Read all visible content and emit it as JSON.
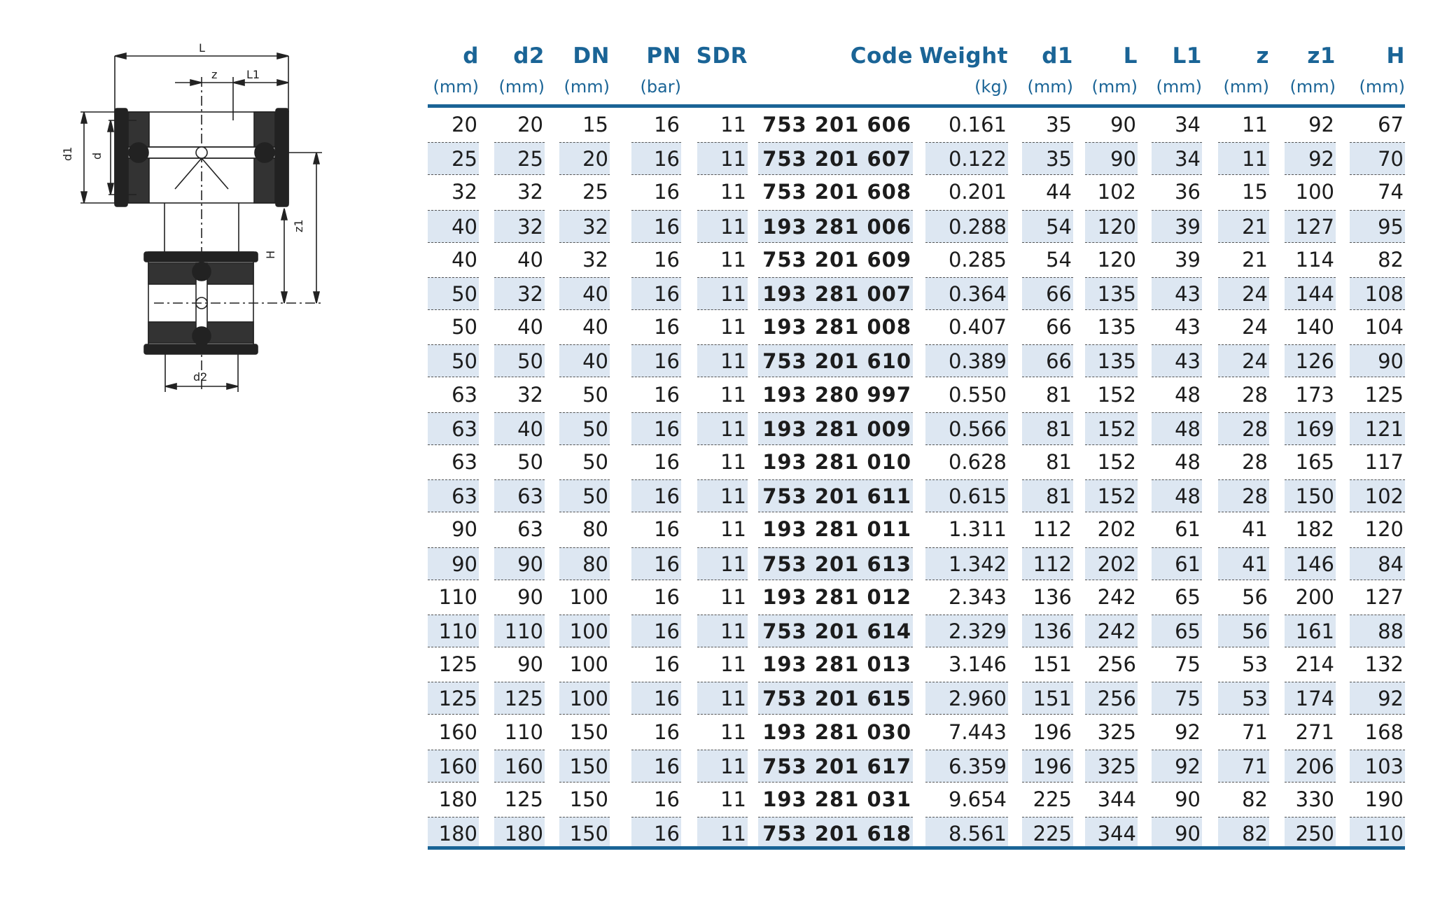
{
  "drawing": {
    "labels": {
      "L": "L",
      "z": "z",
      "L1": "L1",
      "d1": "d1",
      "d": "d",
      "z1": "z1",
      "H": "H",
      "d2": "d2"
    }
  },
  "table": {
    "columns": [
      {
        "key": "d",
        "label": "d",
        "unit": "(mm)"
      },
      {
        "key": "d2",
        "label": "d2",
        "unit": "(mm)"
      },
      {
        "key": "DN",
        "label": "DN",
        "unit": "(mm)"
      },
      {
        "key": "PN",
        "label": "PN",
        "unit": "(bar)"
      },
      {
        "key": "SDR",
        "label": "SDR",
        "unit": ""
      },
      {
        "key": "Code",
        "label": "Code",
        "unit": ""
      },
      {
        "key": "Weight",
        "label": "Weight",
        "unit": "(kg)"
      },
      {
        "key": "d1",
        "label": "d1",
        "unit": "(mm)"
      },
      {
        "key": "L",
        "label": "L",
        "unit": "(mm)"
      },
      {
        "key": "L1",
        "label": "L1",
        "unit": "(mm)"
      },
      {
        "key": "z",
        "label": "z",
        "unit": "(mm)"
      },
      {
        "key": "z1",
        "label": "z1",
        "unit": "(mm)"
      },
      {
        "key": "H",
        "label": "H",
        "unit": "(mm)"
      }
    ],
    "rows": [
      [
        "20",
        "20",
        "15",
        "16",
        "11",
        "753 201 606",
        "0.161",
        "35",
        "90",
        "34",
        "11",
        "92",
        "67"
      ],
      [
        "25",
        "25",
        "20",
        "16",
        "11",
        "753 201 607",
        "0.122",
        "35",
        "90",
        "34",
        "11",
        "92",
        "70"
      ],
      [
        "32",
        "32",
        "25",
        "16",
        "11",
        "753 201 608",
        "0.201",
        "44",
        "102",
        "36",
        "15",
        "100",
        "74"
      ],
      [
        "40",
        "32",
        "32",
        "16",
        "11",
        "193 281 006",
        "0.288",
        "54",
        "120",
        "39",
        "21",
        "127",
        "95"
      ],
      [
        "40",
        "40",
        "32",
        "16",
        "11",
        "753 201 609",
        "0.285",
        "54",
        "120",
        "39",
        "21",
        "114",
        "82"
      ],
      [
        "50",
        "32",
        "40",
        "16",
        "11",
        "193 281 007",
        "0.364",
        "66",
        "135",
        "43",
        "24",
        "144",
        "108"
      ],
      [
        "50",
        "40",
        "40",
        "16",
        "11",
        "193 281 008",
        "0.407",
        "66",
        "135",
        "43",
        "24",
        "140",
        "104"
      ],
      [
        "50",
        "50",
        "40",
        "16",
        "11",
        "753 201 610",
        "0.389",
        "66",
        "135",
        "43",
        "24",
        "126",
        "90"
      ],
      [
        "63",
        "32",
        "50",
        "16",
        "11",
        "193 280 997",
        "0.550",
        "81",
        "152",
        "48",
        "28",
        "173",
        "125"
      ],
      [
        "63",
        "40",
        "50",
        "16",
        "11",
        "193 281 009",
        "0.566",
        "81",
        "152",
        "48",
        "28",
        "169",
        "121"
      ],
      [
        "63",
        "50",
        "50",
        "16",
        "11",
        "193 281 010",
        "0.628",
        "81",
        "152",
        "48",
        "28",
        "165",
        "117"
      ],
      [
        "63",
        "63",
        "50",
        "16",
        "11",
        "753 201 611",
        "0.615",
        "81",
        "152",
        "48",
        "28",
        "150",
        "102"
      ],
      [
        "90",
        "63",
        "80",
        "16",
        "11",
        "193 281 011",
        "1.311",
        "112",
        "202",
        "61",
        "41",
        "182",
        "120"
      ],
      [
        "90",
        "90",
        "80",
        "16",
        "11",
        "753 201 613",
        "1.342",
        "112",
        "202",
        "61",
        "41",
        "146",
        "84"
      ],
      [
        "110",
        "90",
        "100",
        "16",
        "11",
        "193 281 012",
        "2.343",
        "136",
        "242",
        "65",
        "56",
        "200",
        "127"
      ],
      [
        "110",
        "110",
        "100",
        "16",
        "11",
        "753 201 614",
        "2.329",
        "136",
        "242",
        "65",
        "56",
        "161",
        "88"
      ],
      [
        "125",
        "90",
        "100",
        "16",
        "11",
        "193 281 013",
        "3.146",
        "151",
        "256",
        "75",
        "53",
        "214",
        "132"
      ],
      [
        "125",
        "125",
        "100",
        "16",
        "11",
        "753 201 615",
        "2.960",
        "151",
        "256",
        "75",
        "53",
        "174",
        "92"
      ],
      [
        "160",
        "110",
        "150",
        "16",
        "11",
        "193 281 030",
        "7.443",
        "196",
        "325",
        "92",
        "71",
        "271",
        "168"
      ],
      [
        "160",
        "160",
        "150",
        "16",
        "11",
        "753 201 617",
        "6.359",
        "196",
        "325",
        "92",
        "71",
        "206",
        "103"
      ],
      [
        "180",
        "125",
        "150",
        "16",
        "11",
        "193 281 031",
        "9.654",
        "225",
        "344",
        "90",
        "82",
        "330",
        "190"
      ],
      [
        "180",
        "180",
        "150",
        "16",
        "11",
        "753 201 618",
        "8.561",
        "225",
        "344",
        "90",
        "82",
        "250",
        "110"
      ]
    ]
  },
  "colors": {
    "accent": "#1a6496",
    "row_alt": "#dde7f2",
    "text": "#1c1c1c"
  }
}
